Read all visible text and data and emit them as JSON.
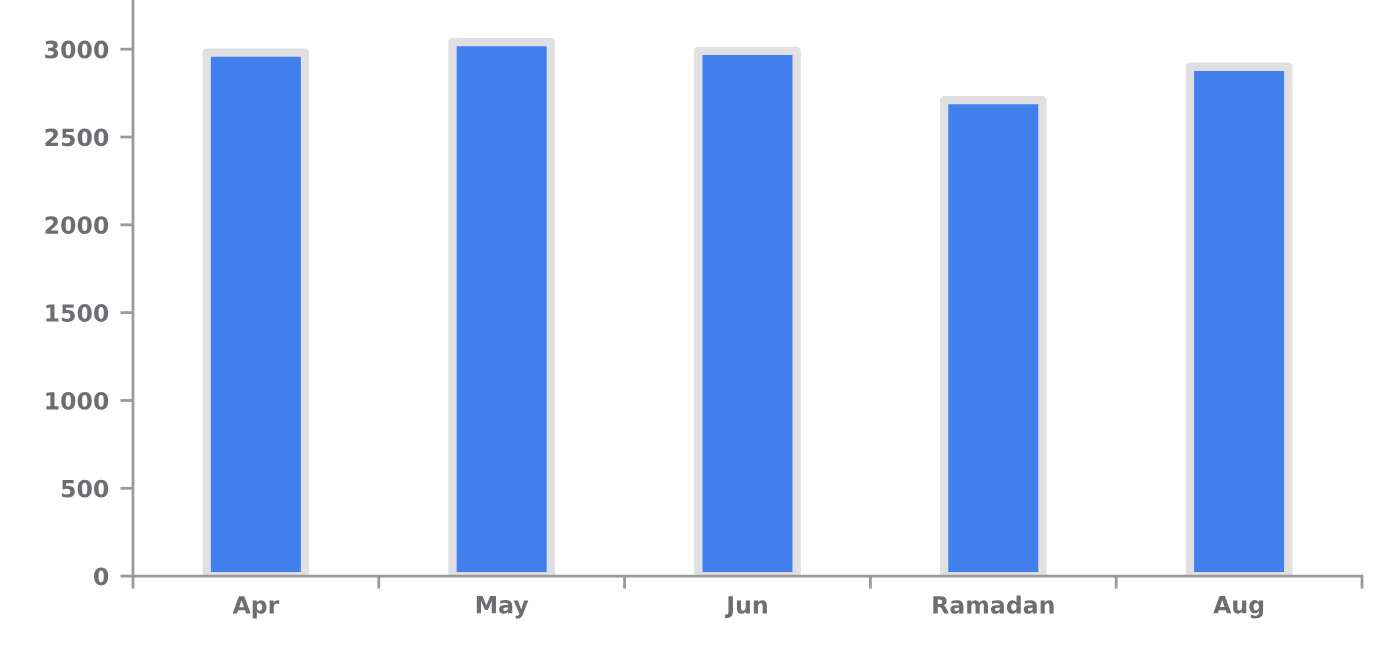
{
  "chart_data": {
    "type": "bar",
    "categories": [
      "Apr",
      "May",
      "Jun",
      "Ramadan",
      "Aug"
    ],
    "values": [
      2980,
      3040,
      2990,
      2710,
      2900
    ],
    "color": "#4180ec",
    "ylim": [
      0,
      3280
    ],
    "yticks": [
      0,
      500,
      1000,
      1500,
      2000,
      2500,
      3000
    ],
    "grid": false
  }
}
